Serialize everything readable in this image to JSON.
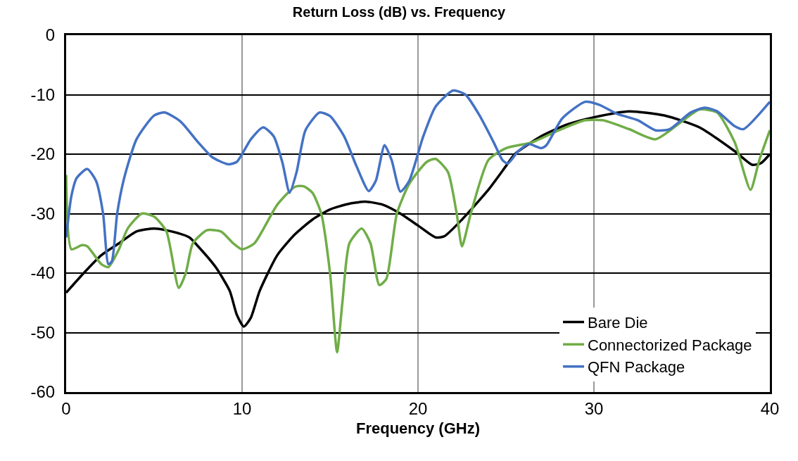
{
  "chart_data": {
    "type": "line",
    "title": "Return Loss (dB) vs. Frequency",
    "xlabel": "Frequency (GHz)",
    "xlim": [
      0,
      40
    ],
    "xticks": [
      0,
      10,
      20,
      30,
      40
    ],
    "ylim": [
      -60,
      0
    ],
    "yticks": [
      -60,
      -50,
      -40,
      -30,
      -20,
      -10,
      0
    ],
    "grid": true,
    "legend": "bottom right",
    "marker": "none",
    "line_style": "solid",
    "series": [
      {
        "name": "Bare Die",
        "color": "#000000",
        "x": [
          0,
          1,
          2,
          3,
          4,
          5,
          6,
          7,
          7.5,
          8.5,
          9.3,
          9.7,
          10.1,
          10.5,
          11,
          12,
          13,
          14,
          15,
          16,
          17,
          18,
          19,
          20,
          21,
          21.5,
          22.5,
          24,
          25,
          25.5,
          27,
          28.5,
          30,
          32,
          34,
          36,
          38,
          39,
          39.5,
          40
        ],
        "values": [
          -43.3,
          -40,
          -37,
          -35,
          -33,
          -32.5,
          -33,
          -34,
          -35.5,
          -39,
          -43,
          -47,
          -49,
          -47.5,
          -43,
          -37,
          -33.5,
          -31,
          -29.3,
          -28.4,
          -28,
          -28.5,
          -30,
          -32,
          -34,
          -33.8,
          -31,
          -26,
          -22,
          -20,
          -17,
          -15,
          -13.8,
          -12.8,
          -13.5,
          -15.5,
          -19.5,
          -21.8,
          -21.5,
          -20
        ]
      },
      {
        "name": "Connectorized Package",
        "color": "#70ad47",
        "x": [
          0,
          0.3,
          0.9,
          1.2,
          2,
          2.4,
          3,
          3.5,
          4.3,
          5,
          5.7,
          6.4,
          6.8,
          7.2,
          8,
          8.8,
          9.5,
          10,
          10.7,
          12,
          13,
          13.5,
          14,
          14.5,
          15,
          15.4,
          15.7,
          16.1,
          16.8,
          17.3,
          17.8,
          18.2,
          18.8,
          19.5,
          20.5,
          21,
          21.7,
          22.2,
          22.5,
          23,
          24,
          25,
          26.5,
          28,
          29.5,
          30.5,
          32,
          33.5,
          35,
          36,
          37,
          38,
          38.9,
          39.4,
          40
        ],
        "values": [
          -23.5,
          -36,
          -35.3,
          -35.5,
          -38.5,
          -39,
          -36,
          -32.5,
          -30,
          -30.5,
          -33,
          -42.5,
          -40,
          -35,
          -32.8,
          -33,
          -35,
          -36,
          -35,
          -28.5,
          -25.5,
          -25.4,
          -26.5,
          -30,
          -40,
          -53.3,
          -45,
          -35,
          -32.5,
          -35,
          -42,
          -41,
          -30,
          -25,
          -21.3,
          -20.8,
          -23,
          -30,
          -35.5,
          -30,
          -21,
          -19,
          -18,
          -16,
          -14.3,
          -14.3,
          -15.8,
          -17.5,
          -14.5,
          -12.5,
          -13,
          -18,
          -26,
          -21,
          -16
        ]
      },
      {
        "name": "QFN Package",
        "color": "#4472c4",
        "x": [
          0,
          0.3,
          0.6,
          1.2,
          1.7,
          2.1,
          2.4,
          2.6,
          2.9,
          3.3,
          4,
          5,
          5.6,
          6.5,
          7.5,
          8.3,
          9.2,
          9.7,
          10.5,
          11.2,
          11.8,
          12.3,
          12.7,
          13.1,
          13.6,
          14.4,
          15,
          15.8,
          16.5,
          17.2,
          17.6,
          18.1,
          18.5,
          19,
          19.5,
          20.3,
          21,
          22,
          22.7,
          23.5,
          24.3,
          24.8,
          25.1,
          25.7,
          26.3,
          27,
          27.3,
          28.2,
          29.5,
          30.3,
          31.3,
          32.5,
          33.5,
          34.3,
          35.5,
          36.3,
          37,
          38,
          38.5,
          40
        ],
        "values": [
          -34,
          -27,
          -24,
          -22.5,
          -24.5,
          -30,
          -38.5,
          -38,
          -30,
          -24,
          -17.5,
          -13.5,
          -13,
          -14.5,
          -18,
          -20.5,
          -21.7,
          -21.3,
          -17.5,
          -15.5,
          -17,
          -21.5,
          -26.5,
          -23,
          -16,
          -13,
          -13.6,
          -17,
          -22,
          -26.2,
          -24.5,
          -18.5,
          -21,
          -26.3,
          -24.5,
          -17,
          -12,
          -9.3,
          -10,
          -13.5,
          -18,
          -21,
          -21.6,
          -19.5,
          -18.3,
          -19,
          -18.5,
          -14,
          -11.2,
          -11.7,
          -13.2,
          -14.3,
          -16,
          -15.8,
          -13,
          -12.2,
          -12.8,
          -15.3,
          -15.8,
          -11.2
        ]
      }
    ]
  }
}
